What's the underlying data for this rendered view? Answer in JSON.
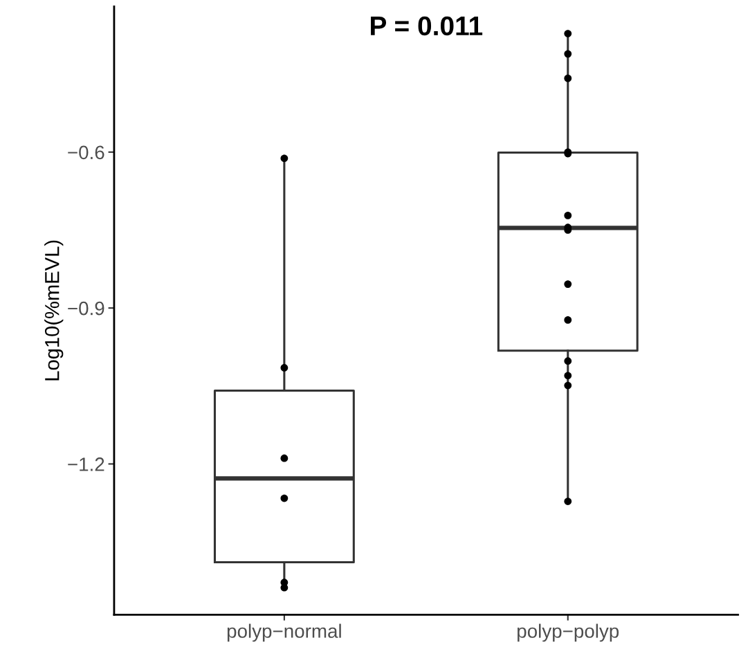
{
  "chart_data": {
    "type": "box",
    "ylabel": "Log10(%mEVL)",
    "categories": [
      "polyp−normal",
      "polyp−polyp"
    ],
    "series": [
      {
        "color": "#333333",
        "boxes": [
          {
            "low": -1.43,
            "q1": -1.389,
            "median": -1.228,
            "q3": -1.059,
            "high": -0.613
          },
          {
            "low": -1.272,
            "q1": -0.982,
            "median": -0.746,
            "q3": -0.601,
            "high": -0.372
          }
        ]
      },
      {
        "type": "scatter",
        "color": "#000000",
        "x": [
          "polyp−normal",
          "polyp−normal",
          "polyp−normal",
          "polyp−normal",
          "polyp−normal",
          "polyp−normal",
          "polyp−polyp",
          "polyp−polyp",
          "polyp−polyp",
          "polyp−polyp",
          "polyp−polyp",
          "polyp−polyp",
          "polyp−polyp",
          "polyp−polyp",
          "polyp−polyp",
          "polyp−polyp",
          "polyp−polyp",
          "polyp−polyp",
          "polyp−polyp",
          "polyp−polyp"
        ],
        "values": [
          -0.612,
          -1.015,
          -1.189,
          -1.266,
          -1.428,
          -1.438,
          -0.372,
          -0.411,
          -0.458,
          -0.6,
          -0.603,
          -0.722,
          -0.75,
          -0.745,
          -0.854,
          -0.923,
          -1.002,
          -1.03,
          -1.049,
          -1.272
        ]
      }
    ],
    "ylim": [
      -1.49,
      -0.32
    ],
    "yticks": [
      -0.6,
      -0.9,
      -1.2
    ],
    "annotations": [
      "P = 0.011"
    ],
    "grid": false,
    "legend": false,
    "marker": "circle"
  }
}
